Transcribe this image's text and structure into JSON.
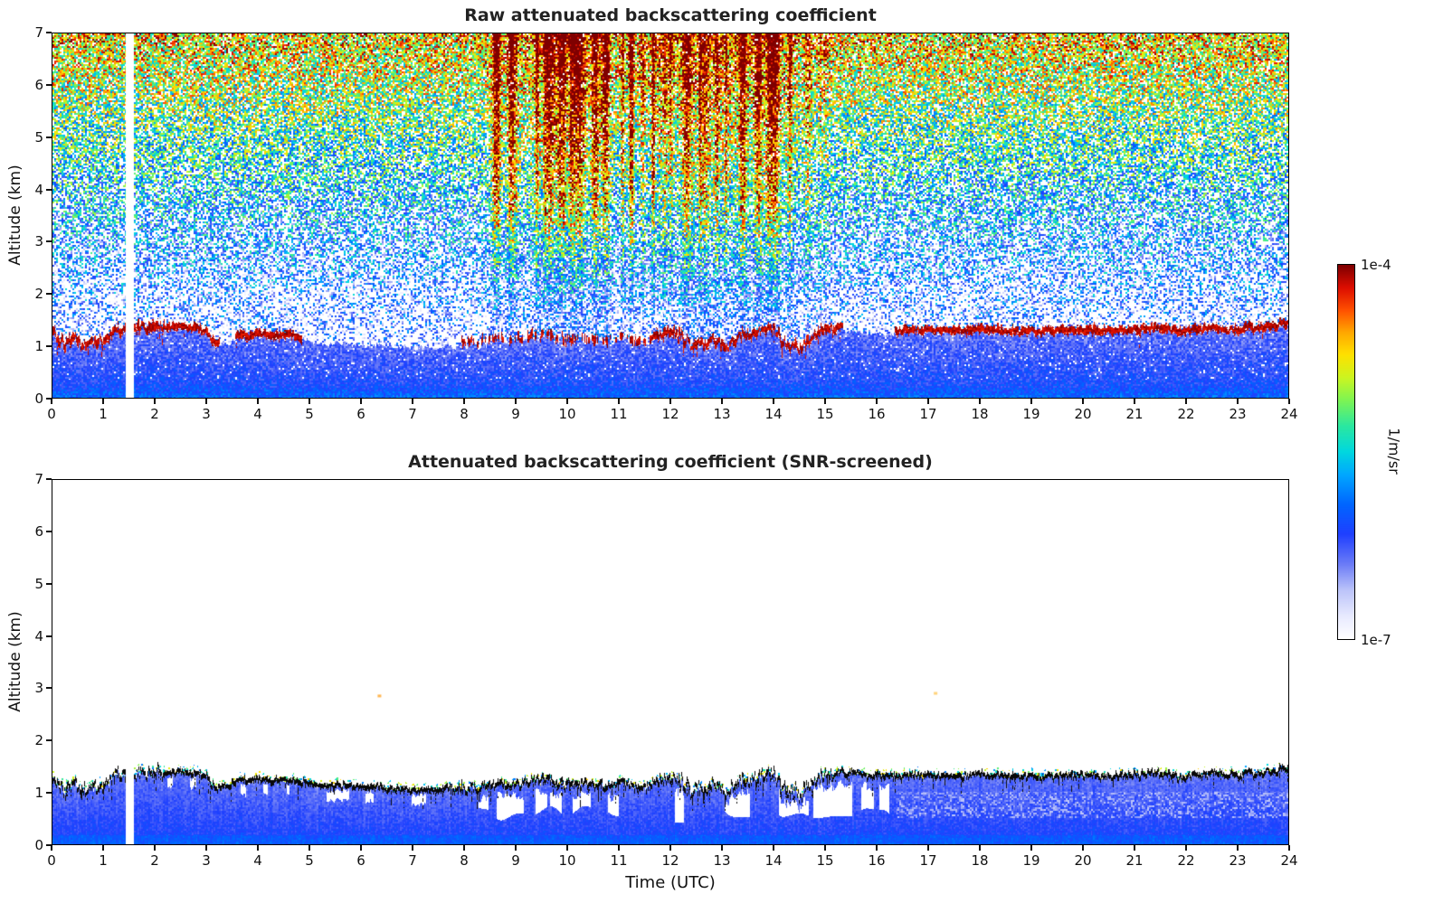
{
  "figure": {
    "background": "#ffffff",
    "colormap": [
      [
        0.0,
        "#ffffff"
      ],
      [
        0.06,
        "#e9ebff"
      ],
      [
        0.13,
        "#bcc4fa"
      ],
      [
        0.2,
        "#6b7cf7"
      ],
      [
        0.28,
        "#2040ff"
      ],
      [
        0.36,
        "#0066ff"
      ],
      [
        0.44,
        "#00a8ff"
      ],
      [
        0.5,
        "#00d8e0"
      ],
      [
        0.57,
        "#2ce8a0"
      ],
      [
        0.64,
        "#80f552"
      ],
      [
        0.7,
        "#cdf520"
      ],
      [
        0.76,
        "#ffe200"
      ],
      [
        0.82,
        "#ffa800"
      ],
      [
        0.88,
        "#ff5000"
      ],
      [
        0.94,
        "#dd0e00"
      ],
      [
        1.0,
        "#7f0000"
      ]
    ],
    "colorbar": {
      "label": "1/m/sr",
      "tick_top": "1e-4",
      "tick_bottom": "1e-7"
    }
  },
  "chart_data": [
    {
      "type": "heatmap",
      "title": "Raw attenuated backscattering coefficient",
      "xlabel": "",
      "ylabel": "Altitude (km)",
      "xlim": [
        0,
        24
      ],
      "ylim": [
        0,
        7
      ],
      "xticks": [
        0,
        1,
        2,
        3,
        4,
        5,
        6,
        7,
        8,
        9,
        10,
        11,
        12,
        13,
        14,
        15,
        16,
        17,
        18,
        19,
        20,
        21,
        22,
        23,
        24
      ],
      "yticks": [
        0,
        1,
        2,
        3,
        4,
        5,
        6,
        7
      ],
      "value_scale": {
        "min": "1e-7",
        "max": "1e-4",
        "units": "1/m/sr",
        "scale": "log"
      },
      "grid": false,
      "features": {
        "data_gap_utc": [
          1.43,
          1.58
        ],
        "layer_line_color": "#8b0000",
        "layer_top_points_km": [
          [
            0,
            1.32
          ],
          [
            0.15,
            1.1
          ],
          [
            0.3,
            1.0
          ],
          [
            0.45,
            1.22
          ],
          [
            0.6,
            0.95
          ],
          [
            0.8,
            1.05
          ],
          [
            1.0,
            1.12
          ],
          [
            1.2,
            1.3
          ],
          [
            1.45,
            1.35
          ],
          [
            1.6,
            1.33
          ],
          [
            2.0,
            1.38
          ],
          [
            2.4,
            1.36
          ],
          [
            2.8,
            1.33
          ],
          [
            3.0,
            1.28
          ],
          [
            3.15,
            1.02
          ],
          [
            3.3,
            1.1
          ],
          [
            3.6,
            1.18
          ],
          [
            4.0,
            1.22
          ],
          [
            4.4,
            1.2
          ],
          [
            4.85,
            1.17
          ],
          [
            5.5,
            1.1
          ],
          [
            6.5,
            1.05
          ],
          [
            7.5,
            1.02
          ],
          [
            8.0,
            1.05
          ],
          [
            8.5,
            1.1
          ],
          [
            9.0,
            1.14
          ],
          [
            9.5,
            1.18
          ],
          [
            10.0,
            1.14
          ],
          [
            10.5,
            1.1
          ],
          [
            11.0,
            1.14
          ],
          [
            11.5,
            1.08
          ],
          [
            11.9,
            1.28
          ],
          [
            12.2,
            1.18
          ],
          [
            12.5,
            0.98
          ],
          [
            12.8,
            1.12
          ],
          [
            13.1,
            0.95
          ],
          [
            13.4,
            1.22
          ],
          [
            13.7,
            1.3
          ],
          [
            14.0,
            1.32
          ],
          [
            14.2,
            1.05
          ],
          [
            14.5,
            0.95
          ],
          [
            14.8,
            1.18
          ],
          [
            15.0,
            1.3
          ],
          [
            15.35,
            1.35
          ],
          [
            16.35,
            1.28
          ],
          [
            17.0,
            1.3
          ],
          [
            18.0,
            1.3
          ],
          [
            19.0,
            1.28
          ],
          [
            20.0,
            1.3
          ],
          [
            21.0,
            1.32
          ],
          [
            22.0,
            1.3
          ],
          [
            23.0,
            1.33
          ],
          [
            23.6,
            1.38
          ],
          [
            24,
            1.4
          ]
        ],
        "layer_line_segments_utc": [
          [
            0,
            3.25
          ],
          [
            3.55,
            4.85
          ],
          [
            7.95,
            15.35
          ],
          [
            16.35,
            24
          ]
        ],
        "solar_noise_window_utc": [
          8.5,
          15.3
        ],
        "noise_increases_with_altitude": true
      }
    },
    {
      "type": "heatmap",
      "title": "Attenuated backscattering coefficient (SNR-screened)",
      "xlabel": "Time (UTC)",
      "ylabel": "Altitude (km)",
      "xlim": [
        0,
        24
      ],
      "ylim": [
        0,
        7
      ],
      "xticks": [
        0,
        1,
        2,
        3,
        4,
        5,
        6,
        7,
        8,
        9,
        10,
        11,
        12,
        13,
        14,
        15,
        16,
        17,
        18,
        19,
        20,
        21,
        22,
        23,
        24
      ],
      "yticks": [
        0,
        1,
        2,
        3,
        4,
        5,
        6,
        7
      ],
      "value_scale": {
        "min": "1e-7",
        "max": "1e-4",
        "units": "1/m/sr",
        "scale": "log"
      },
      "grid": false,
      "features": {
        "data_gap_utc": [
          1.43,
          1.58
        ],
        "screened_white_above_layer": true,
        "layer_line_color": "#000000",
        "layer_top_points_km": [
          [
            0,
            1.32
          ],
          [
            0.15,
            1.1
          ],
          [
            0.3,
            1.0
          ],
          [
            0.45,
            1.22
          ],
          [
            0.6,
            0.95
          ],
          [
            0.8,
            1.05
          ],
          [
            1.0,
            1.12
          ],
          [
            1.2,
            1.3
          ],
          [
            1.45,
            1.35
          ],
          [
            1.6,
            1.33
          ],
          [
            2.0,
            1.38
          ],
          [
            2.4,
            1.36
          ],
          [
            2.8,
            1.33
          ],
          [
            3.0,
            1.28
          ],
          [
            3.15,
            1.02
          ],
          [
            3.3,
            1.1
          ],
          [
            3.6,
            1.18
          ],
          [
            4.0,
            1.22
          ],
          [
            4.4,
            1.2
          ],
          [
            4.85,
            1.17
          ],
          [
            5.5,
            1.1
          ],
          [
            6.5,
            1.05
          ],
          [
            7.5,
            1.02
          ],
          [
            8.0,
            1.05
          ],
          [
            8.5,
            1.1
          ],
          [
            9.0,
            1.14
          ],
          [
            9.5,
            1.18
          ],
          [
            10.0,
            1.14
          ],
          [
            10.5,
            1.1
          ],
          [
            11.0,
            1.14
          ],
          [
            11.5,
            1.08
          ],
          [
            11.9,
            1.28
          ],
          [
            12.2,
            1.18
          ],
          [
            12.5,
            0.98
          ],
          [
            12.8,
            1.12
          ],
          [
            13.1,
            0.95
          ],
          [
            13.4,
            1.22
          ],
          [
            13.7,
            1.3
          ],
          [
            14.0,
            1.32
          ],
          [
            14.2,
            1.05
          ],
          [
            14.5,
            0.95
          ],
          [
            14.8,
            1.18
          ],
          [
            15.0,
            1.3
          ],
          [
            15.35,
            1.35
          ],
          [
            16.35,
            1.28
          ],
          [
            17.0,
            1.3
          ],
          [
            18.0,
            1.3
          ],
          [
            19.0,
            1.28
          ],
          [
            20.0,
            1.3
          ],
          [
            21.0,
            1.32
          ],
          [
            22.0,
            1.3
          ],
          [
            23.0,
            1.33
          ],
          [
            23.6,
            1.38
          ],
          [
            24,
            1.4
          ]
        ],
        "white_hole_window_utc": [
          7.8,
          16.25
        ],
        "isolated_specks": [
          {
            "t": 6.35,
            "y": 2.85,
            "color": "#ffaa33"
          },
          {
            "t": 17.15,
            "y": 2.9,
            "color": "#ffcc66"
          }
        ]
      }
    }
  ]
}
